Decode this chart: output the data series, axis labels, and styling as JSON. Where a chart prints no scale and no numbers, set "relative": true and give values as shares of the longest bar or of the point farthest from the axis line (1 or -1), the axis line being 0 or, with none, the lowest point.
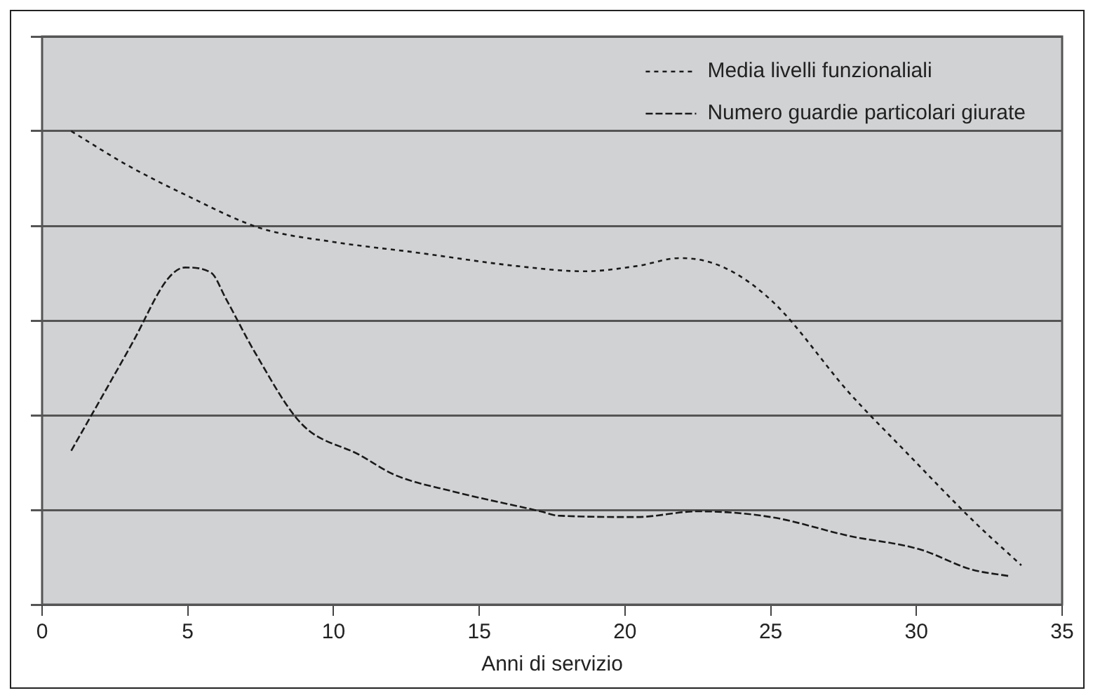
{
  "chart_data": {
    "type": "line",
    "xlabel": "Anni di servizio",
    "relative": true,
    "xlim": [
      0,
      35
    ],
    "xticks": [
      0,
      5,
      10,
      15,
      20,
      25,
      30,
      35
    ],
    "grid": "y",
    "legend": "top right",
    "marker": "none",
    "series": [
      {
        "name": "Media livelli funzionaliali",
        "color": "#1a1a1a",
        "line_style": "dotted",
        "x": [
          1.0,
          2.9,
          4.9,
          7.5,
          10.0,
          12.8,
          16.3,
          18.6,
          20.4,
          21.9,
          23.4,
          25.1,
          27.7,
          29.6,
          32.0,
          33.6
        ],
        "values": [
          1.0,
          0.929,
          0.866,
          0.795,
          0.766,
          0.744,
          0.715,
          0.704,
          0.715,
          0.732,
          0.712,
          0.638,
          0.447,
          0.325,
          0.174,
          0.083
        ]
      },
      {
        "name": "Numero guardie particolari giurate",
        "color": "#1a1a1a",
        "line_style": "dashed",
        "x": [
          1.0,
          3.1,
          4.3,
          4.9,
          5.8,
          6.3,
          7.3,
          8.9,
          10.9,
          12.1,
          14.1,
          17.1,
          17.7,
          20.4,
          22.5,
          25.0,
          27.7,
          30.1,
          31.9,
          33.2
        ],
        "values": [
          0.325,
          0.553,
          0.687,
          0.712,
          0.701,
          0.647,
          0.533,
          0.382,
          0.316,
          0.274,
          0.239,
          0.197,
          0.188,
          0.185,
          0.197,
          0.185,
          0.145,
          0.117,
          0.074,
          0.06
        ]
      }
    ]
  }
}
